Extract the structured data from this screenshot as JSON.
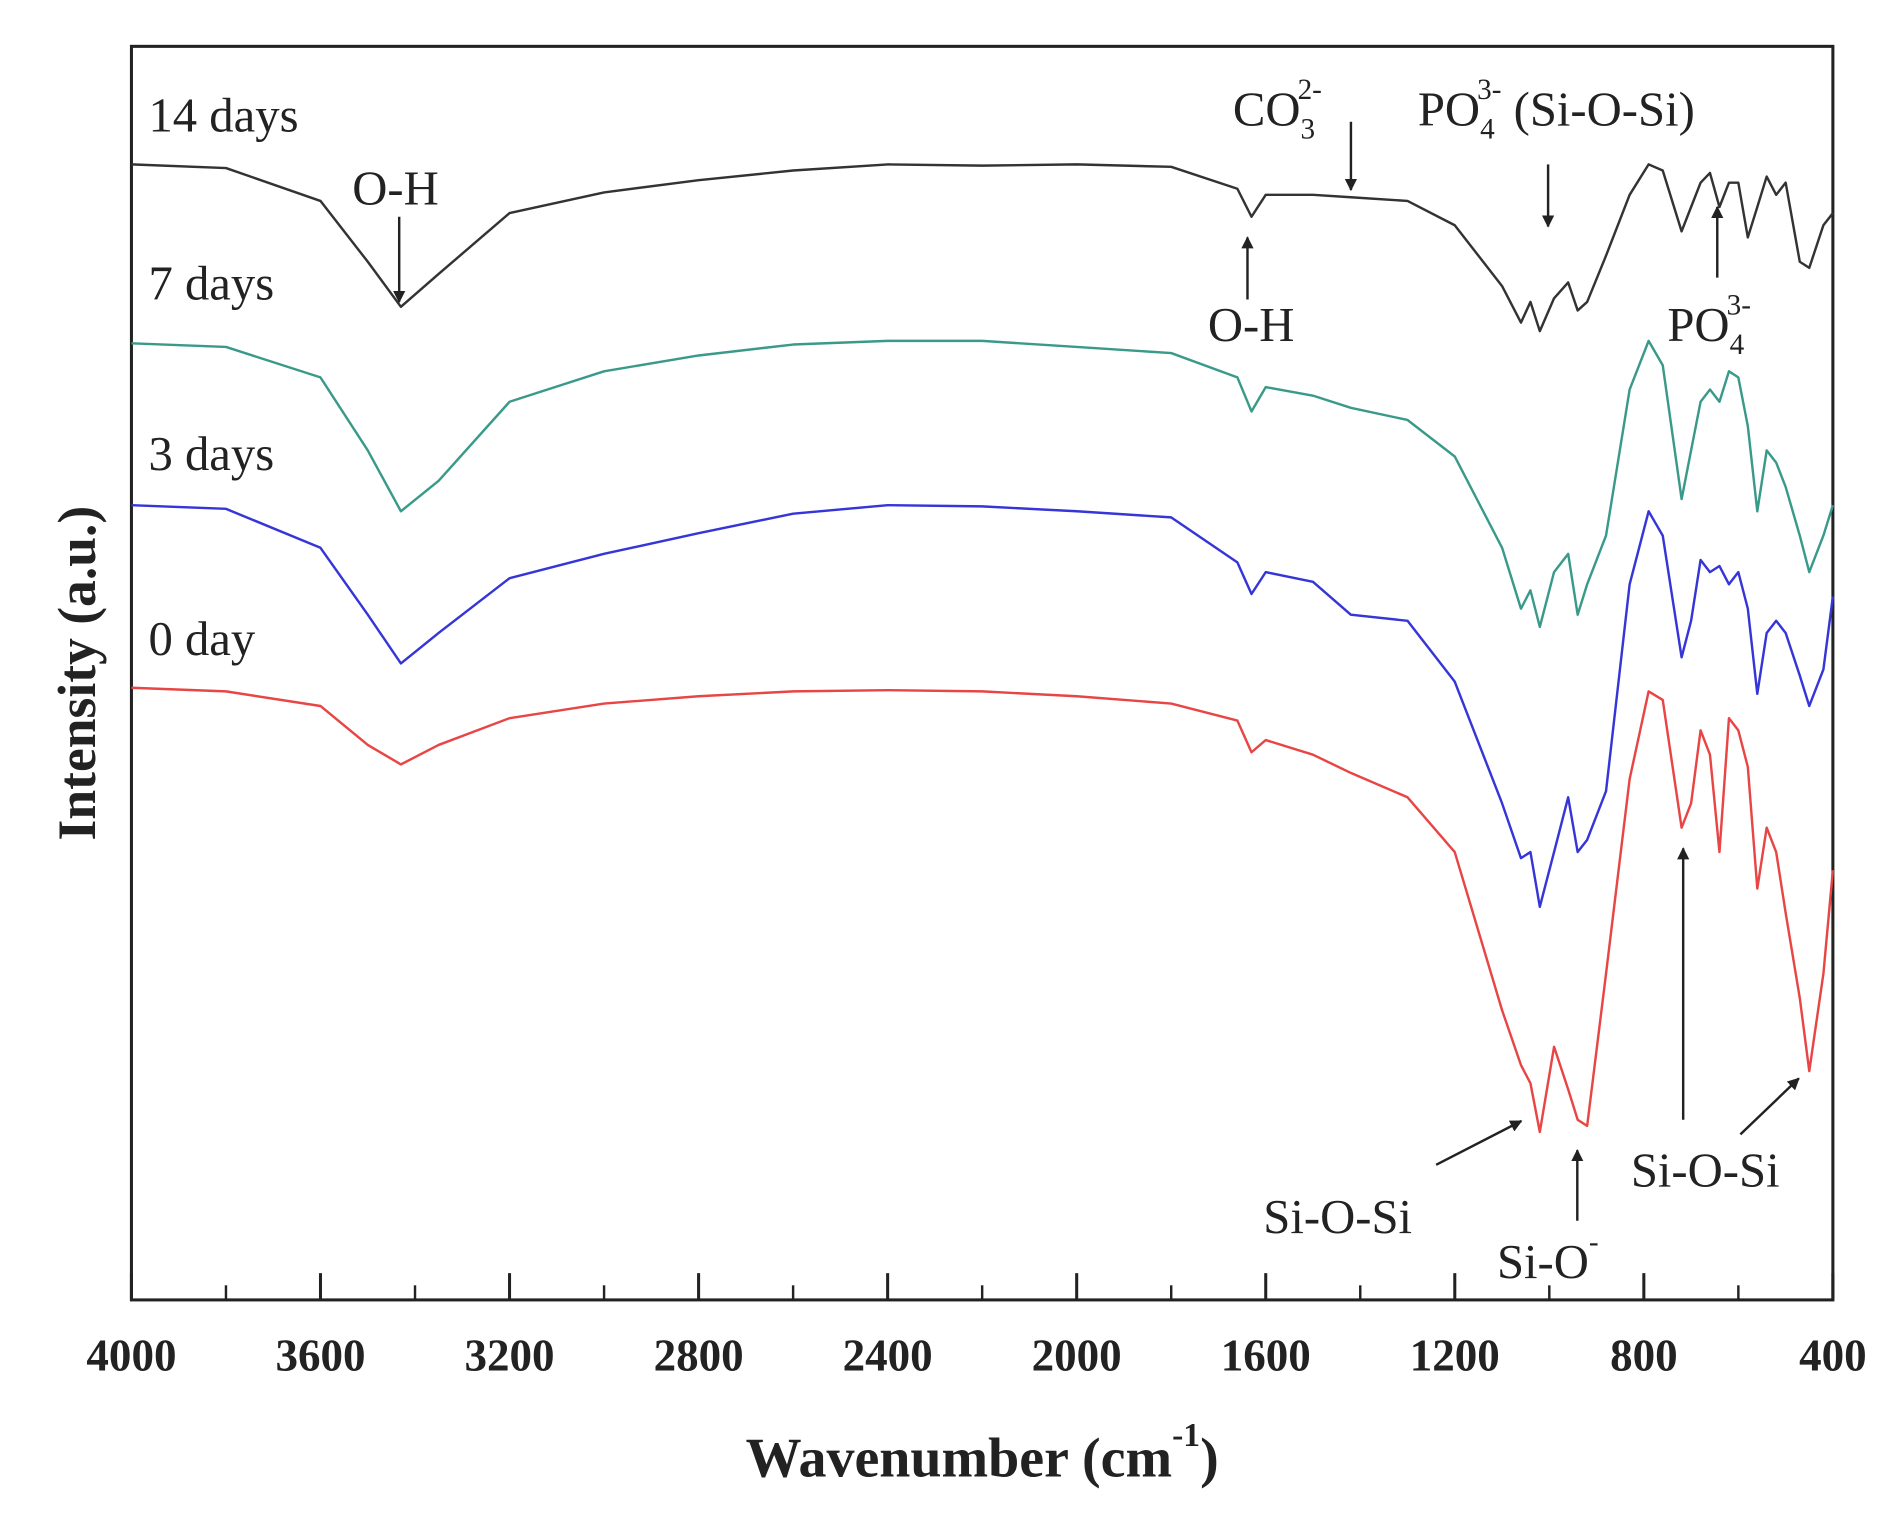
{
  "chart_data": {
    "type": "line",
    "xlabel": {
      "text": "Wavenumber (cm",
      "sup": "-1",
      "tail": ")"
    },
    "ylabel": "Intensity (a.u.)",
    "x": [
      4000,
      3800,
      3600,
      3500,
      3430,
      3350,
      3200,
      3000,
      2800,
      2600,
      2400,
      2200,
      2000,
      1800,
      1660,
      1630,
      1600,
      1500,
      1420,
      1300,
      1200,
      1100,
      1060,
      1040,
      1020,
      990,
      960,
      940,
      920,
      880,
      830,
      790,
      760,
      720,
      700,
      680,
      660,
      640,
      620,
      600,
      580,
      560,
      540,
      520,
      500,
      470,
      450,
      420,
      400
    ],
    "xlim": [
      4000,
      400
    ],
    "xticks": [
      4000,
      3600,
      3200,
      2800,
      2400,
      2000,
      1600,
      1200,
      800,
      400
    ],
    "xminor_ticks": [
      3800,
      3400,
      3000,
      2600,
      2200,
      1800,
      1400,
      1000,
      600
    ],
    "ylim": [
      0,
      1030
    ],
    "series": [
      {
        "name": "14 days",
        "color": "#333333",
        "values": [
          933,
          930,
          903,
          853,
          816,
          843,
          893,
          910,
          920,
          928,
          933,
          932,
          933,
          931,
          913,
          890,
          908,
          908,
          906,
          903,
          883,
          833,
          803,
          820,
          796,
          823,
          836,
          813,
          820,
          858,
          908,
          933,
          928,
          878,
          898,
          918,
          926,
          898,
          918,
          918,
          873,
          898,
          923,
          908,
          918,
          853,
          848,
          883,
          893
        ]
      },
      {
        "name": "7 days",
        "color": "#3a9a8a",
        "values": [
          786,
          783,
          758,
          698,
          648,
          673,
          738,
          763,
          776,
          785,
          788,
          788,
          783,
          778,
          758,
          730,
          750,
          743,
          733,
          723,
          693,
          618,
          568,
          583,
          553,
          598,
          613,
          563,
          588,
          628,
          748,
          788,
          768,
          658,
          698,
          738,
          748,
          738,
          763,
          758,
          718,
          648,
          698,
          688,
          668,
          628,
          598,
          628,
          653
        ]
      },
      {
        "name": "3 days",
        "color": "#3535d8",
        "values": [
          653,
          650,
          618,
          563,
          523,
          548,
          593,
          613,
          630,
          646,
          653,
          652,
          648,
          643,
          606,
          580,
          598,
          590,
          563,
          558,
          508,
          408,
          363,
          368,
          323,
          368,
          413,
          368,
          378,
          418,
          588,
          648,
          628,
          528,
          558,
          608,
          598,
          603,
          588,
          598,
          568,
          498,
          548,
          558,
          548,
          513,
          488,
          518,
          578
        ]
      },
      {
        "name": "0 day",
        "color": "#e84545",
        "values": [
          503,
          500,
          488,
          456,
          440,
          456,
          478,
          490,
          496,
          500,
          501,
          500,
          496,
          490,
          476,
          450,
          460,
          448,
          433,
          413,
          368,
          238,
          193,
          178,
          138,
          208,
          173,
          148,
          143,
          268,
          428,
          500,
          493,
          388,
          408,
          468,
          448,
          368,
          478,
          468,
          438,
          338,
          388,
          368,
          318,
          248,
          188,
          268,
          353
        ]
      }
    ],
    "annotations": [
      {
        "text": "O-H"
      },
      {
        "text": "CO",
        "sub": "3",
        "sup": "2-"
      },
      {
        "text": "PO",
        "sub": "4",
        "sup": "3-",
        "tail": " (Si-O-Si)"
      },
      {
        "text": "O-H"
      },
      {
        "text": "PO",
        "sub": "4",
        "sup": "3-"
      },
      {
        "text": "Si-O-Si"
      },
      {
        "text": "Si-O",
        "sup": "-"
      },
      {
        "text": "Si-O-Si"
      }
    ]
  }
}
